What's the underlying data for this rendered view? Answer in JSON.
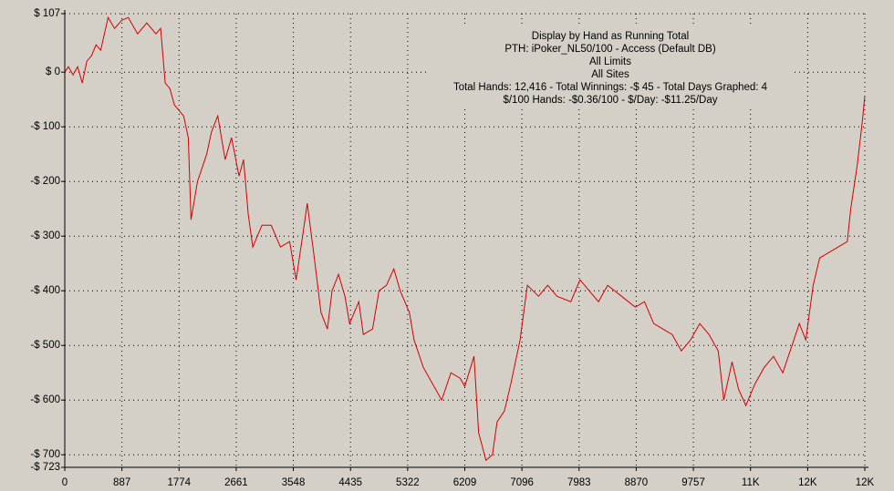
{
  "chart_data": {
    "type": "line",
    "title_lines": [
      "Display by Hand as Running Total",
      "PTH: iPoker_NL50/100 - Access (Default DB)",
      "All Limits",
      "All Sites",
      "Total Hands: 12,416 - Total Winnings: -$ 45 - Total Days Graphed: 4",
      "$/100 Hands: -$0.36/100 - $/Day: -$11.25/Day"
    ],
    "x": [
      0,
      57,
      129,
      200,
      272,
      343,
      415,
      486,
      558,
      672,
      773,
      887,
      987,
      1130,
      1273,
      1416,
      1488,
      1559,
      1631,
      1702,
      1845,
      1917,
      1960,
      2060,
      2203,
      2275,
      2375,
      2489,
      2589,
      2704,
      2775,
      2847,
      2918,
      3062,
      3205,
      3348,
      3491,
      3591,
      3691,
      3763,
      3863,
      3977,
      4077,
      4149,
      4249,
      4349,
      4421,
      4564,
      4635,
      4778,
      4878,
      4993,
      5107,
      5207,
      5350,
      5422,
      5565,
      5708,
      5851,
      5994,
      6137,
      6209,
      6352,
      6424,
      6538,
      6638,
      6710,
      6824,
      6924,
      7067,
      7181,
      7353,
      7496,
      7639,
      7854,
      7997,
      8140,
      8283,
      8426,
      8641,
      8855,
      8998,
      9141,
      9284,
      9427,
      9570,
      9713,
      9857,
      10000,
      10143,
      10229,
      10358,
      10458,
      10572,
      10715,
      10858,
      11001,
      11145,
      11288,
      11402,
      11502,
      11617,
      11717,
      11860,
      12003,
      12146,
      12200,
      12300,
      12380,
      12416
    ],
    "series": [
      {
        "color": "#d40000",
        "values": [
          0,
          10,
          -5,
          10,
          -20,
          20,
          30,
          50,
          40,
          100,
          80,
          95,
          100,
          70,
          90,
          70,
          80,
          -20,
          -30,
          -60,
          -80,
          -120,
          -270,
          -200,
          -150,
          -110,
          -80,
          -160,
          -120,
          -190,
          -160,
          -260,
          -320,
          -280,
          -280,
          -320,
          -310,
          -380,
          -300,
          -240,
          -330,
          -440,
          -470,
          -400,
          -370,
          -410,
          -460,
          -420,
          -480,
          -470,
          -400,
          -390,
          -360,
          -400,
          -440,
          -490,
          -540,
          -570,
          -600,
          -550,
          -560,
          -575,
          -520,
          -660,
          -710,
          -700,
          -640,
          -620,
          -570,
          -490,
          -390,
          -410,
          -390,
          -410,
          -420,
          -380,
          -400,
          -420,
          -390,
          -410,
          -430,
          -420,
          -460,
          -470,
          -480,
          -510,
          -490,
          -460,
          -480,
          -510,
          -600,
          -530,
          -580,
          -610,
          -570,
          -540,
          -520,
          -550,
          -500,
          -460,
          -490,
          -390,
          -340,
          -330,
          -320,
          -310,
          -250,
          -170,
          -90,
          -45
        ]
      }
    ],
    "xlim": [
      0,
      12418
    ],
    "xticks": [
      0,
      887,
      1774,
      2661,
      3548,
      4435,
      5322,
      6209,
      7096,
      7983,
      8870,
      9757,
      {
        "value": 10644,
        "label": "11K"
      },
      {
        "value": 11531,
        "label": "12K"
      },
      {
        "value": 12418,
        "label": "12K"
      }
    ],
    "ylim": [
      -723,
      107
    ],
    "yticks": [
      {
        "value": 107,
        "label": "$ 107"
      },
      {
        "value": 0,
        "label": "$ 0"
      },
      {
        "value": -100,
        "label": "-$ 100"
      },
      {
        "value": -200,
        "label": "-$ 200"
      },
      {
        "value": -300,
        "label": "-$ 300"
      },
      {
        "value": -400,
        "label": "-$ 400"
      },
      {
        "value": -500,
        "label": "-$ 500"
      },
      {
        "value": -600,
        "label": "-$ 600"
      },
      {
        "value": -700,
        "label": "-$ 700"
      },
      {
        "value": -723,
        "label": "-$ 723"
      }
    ],
    "grid": true
  }
}
